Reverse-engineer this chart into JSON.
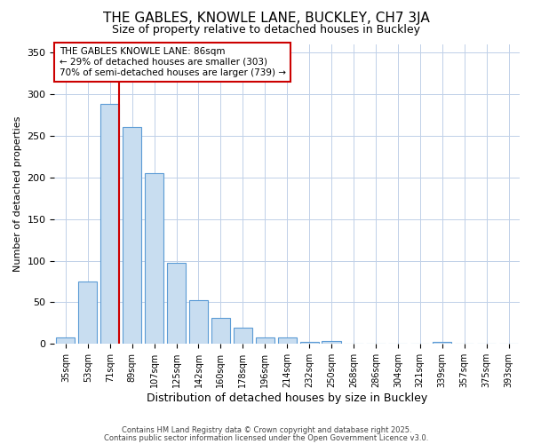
{
  "title1": "THE GABLES, KNOWLE LANE, BUCKLEY, CH7 3JA",
  "title2": "Size of property relative to detached houses in Buckley",
  "xlabel": "Distribution of detached houses by size in Buckley",
  "ylabel": "Number of detached properties",
  "categories": [
    "35sqm",
    "53sqm",
    "71sqm",
    "89sqm",
    "107sqm",
    "125sqm",
    "142sqm",
    "160sqm",
    "178sqm",
    "196sqm",
    "214sqm",
    "232sqm",
    "250sqm",
    "268sqm",
    "286sqm",
    "304sqm",
    "321sqm",
    "339sqm",
    "357sqm",
    "375sqm",
    "393sqm"
  ],
  "bar_values": [
    8,
    75,
    288,
    261,
    205,
    98,
    53,
    31,
    20,
    8,
    8,
    3,
    4,
    0,
    0,
    0,
    0,
    2,
    0,
    0,
    0
  ],
  "bar_color": "#c8ddf0",
  "bar_edge_color": "#5b9bd5",
  "red_line_index": 2,
  "annotation_line1": "THE GABLES KNOWLE LANE: 86sqm",
  "annotation_line2": "← 29% of detached houses are smaller (303)",
  "annotation_line3": "70% of semi-detached houses are larger (739) →",
  "annotation_box_color": "#ffffff",
  "annotation_box_edge": "#cc0000",
  "red_line_color": "#cc0000",
  "ylim": [
    0,
    360
  ],
  "yticks": [
    0,
    50,
    100,
    150,
    200,
    250,
    300,
    350
  ],
  "footer1": "Contains HM Land Registry data © Crown copyright and database right 2025.",
  "footer2": "Contains public sector information licensed under the Open Government Licence v3.0.",
  "bg_color": "#ffffff",
  "plot_bg_color": "#ffffff",
  "title1_fontsize": 11,
  "title2_fontsize": 9
}
